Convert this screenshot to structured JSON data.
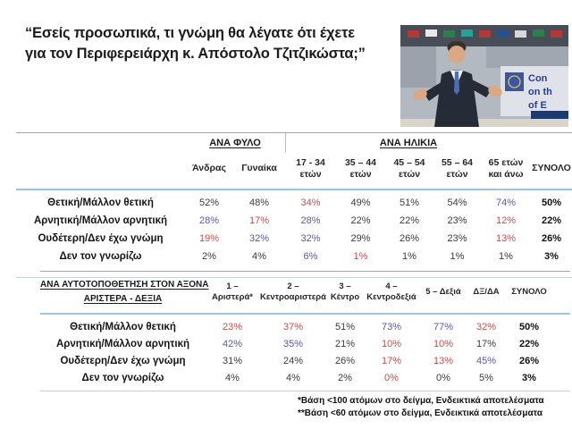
{
  "title": {
    "line1": "“Εσείς προσωπικά, τι γνώμη θα λέγατε ότι έχετε",
    "line2": "για τον Περιφερειάρχη κ. Απόστολο Τζιτζικώστα;”"
  },
  "photo": {
    "description": "speaker-in-dark-suit-at-european-assembly",
    "banner_lines": [
      "Con",
      "on th",
      "of E"
    ]
  },
  "colors": {
    "significant_low": "#c0504d",
    "significant_high": "#5a5aa5",
    "default_value": "#3b3b3b",
    "total_value": "#111111",
    "line_gray": "#a6a6a6",
    "line_blue": "#9dc3e6"
  },
  "table1": {
    "group_headers": [
      {
        "label": "ΑΝΑ ΦΥΛΟ"
      },
      {
        "label": "ΑΝΑ ΗΛΙΚΙΑ"
      }
    ],
    "columns": [
      {
        "lines": [
          "Άνδρας"
        ]
      },
      {
        "lines": [
          "Γυναίκα"
        ]
      },
      {
        "lines": [
          "17 - 34",
          "ετών"
        ]
      },
      {
        "lines": [
          "35 – 44",
          "ετών"
        ]
      },
      {
        "lines": [
          "45 – 54",
          "ετών"
        ]
      },
      {
        "lines": [
          "55 – 64",
          "ετών"
        ]
      },
      {
        "lines": [
          "65 ετών",
          "και άνω"
        ]
      },
      {
        "lines": [
          "ΣΥΝΟΛΟ"
        ]
      }
    ],
    "rows": [
      {
        "label": "Θετική/Μάλλον θετική",
        "values": [
          "52%",
          "48%",
          "34%",
          "49%",
          "51%",
          "54%",
          "74%",
          "50%"
        ],
        "colors": [
          "dark",
          "dark",
          "red",
          "dark",
          "dark",
          "dark",
          "blue",
          "total"
        ]
      },
      {
        "label": "Αρνητική/Μάλλον αρνητική",
        "values": [
          "28%",
          "17%",
          "28%",
          "22%",
          "22%",
          "23%",
          "12%",
          "22%"
        ],
        "colors": [
          "blue",
          "red",
          "blue",
          "dark",
          "dark",
          "dark",
          "red",
          "total"
        ]
      },
      {
        "label": "Ουδέτερη/Δεν έχω γνώμη",
        "values": [
          "19%",
          "32%",
          "32%",
          "29%",
          "26%",
          "23%",
          "13%",
          "26%"
        ],
        "colors": [
          "red",
          "blue",
          "blue",
          "dark",
          "dark",
          "dark",
          "red",
          "total"
        ]
      },
      {
        "label": "Δεν τον γνωρίζω",
        "values": [
          "2%",
          "4%",
          "6%",
          "1%",
          "1%",
          "1%",
          "1%",
          "3%"
        ],
        "colors": [
          "dark",
          "dark",
          "blue",
          "red",
          "dark",
          "dark",
          "dark",
          "total"
        ]
      }
    ]
  },
  "table2": {
    "header_label_lines": [
      "ΑΝΑ ΑΥΤΟΤΟΠΟΘΕΤΗΣΗ ΣΤΟΝ ΑΞΟΝΑ",
      "ΑΡΙΣΤΕΡΑ - ΔΕΞΙΑ"
    ],
    "columns": [
      {
        "lines": [
          "1 –",
          "Αριστερά*"
        ]
      },
      {
        "lines": [
          "2 –",
          "Κεντροαριστερά"
        ]
      },
      {
        "lines": [
          "3 –",
          "Κέντρο"
        ]
      },
      {
        "lines": [
          "4 –",
          "Κεντροδεξιά"
        ]
      },
      {
        "lines": [
          "5 – Δεξιά"
        ]
      },
      {
        "lines": [
          "ΔΞ/ΔΑ"
        ]
      },
      {
        "lines": [
          "ΣΥΝΟΛΟ"
        ]
      }
    ],
    "rows": [
      {
        "label": "Θετική/Μάλλον θετική",
        "values": [
          "23%",
          "37%",
          "51%",
          "73%",
          "77%",
          "32%",
          "50%"
        ],
        "colors": [
          "red",
          "red",
          "dark",
          "blue",
          "blue",
          "red",
          "total"
        ]
      },
      {
        "label": "Αρνητική/Μάλλον αρνητική",
        "values": [
          "42%",
          "35%",
          "21%",
          "10%",
          "10%",
          "17%",
          "22%"
        ],
        "colors": [
          "blue",
          "blue",
          "dark",
          "red",
          "red",
          "dark",
          "total"
        ]
      },
      {
        "label": "Ουδέτερη/Δεν έχω γνώμη",
        "values": [
          "31%",
          "24%",
          "26%",
          "17%",
          "13%",
          "45%",
          "26%"
        ],
        "colors": [
          "dark",
          "dark",
          "dark",
          "red",
          "red",
          "blue",
          "total"
        ]
      },
      {
        "label": "Δεν τον γνωρίζω",
        "values": [
          "4%",
          "4%",
          "2%",
          "0%",
          "0%",
          "5%",
          "3%"
        ],
        "colors": [
          "dark",
          "dark",
          "dark",
          "red",
          "dark",
          "dark",
          "total"
        ]
      }
    ]
  },
  "footnotes": [
    "*Βάση <100 ατόμων στο δείγμα, Ενδεικτικά αποτελέσματα",
    "**Βάση <60 ατόμων στο δείγμα, Ενδεικτικά αποτελέσματα"
  ]
}
